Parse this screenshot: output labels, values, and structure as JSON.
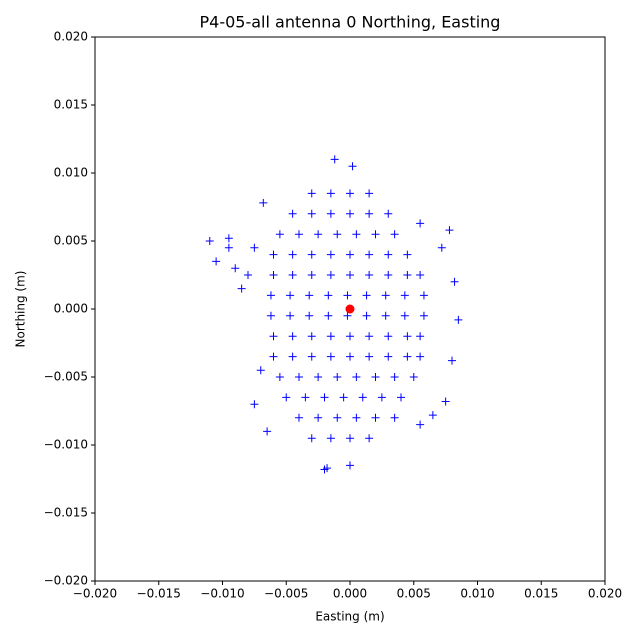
{
  "chart_data": {
    "type": "scatter",
    "title": "P4-05-all antenna 0 Northing, Easting",
    "x_label": "Easting (m)",
    "y_label": "Northing (m)",
    "xlim": [
      -0.02,
      0.02
    ],
    "ylim": [
      -0.02,
      0.02
    ],
    "xticks": [
      {
        "value": -0.02,
        "label": "−0.020"
      },
      {
        "value": -0.015,
        "label": "−0.015"
      },
      {
        "value": -0.01,
        "label": "−0.010"
      },
      {
        "value": -0.005,
        "label": "−0.005"
      },
      {
        "value": 0,
        "label": "0.000"
      },
      {
        "value": 0.005,
        "label": "0.005"
      },
      {
        "value": 0.01,
        "label": "0.010"
      },
      {
        "value": 0.015,
        "label": "0.015"
      },
      {
        "value": 0.02,
        "label": "0.020"
      }
    ],
    "yticks": [
      {
        "value": -0.02,
        "label": "−0.020"
      },
      {
        "value": -0.015,
        "label": "−0.015"
      },
      {
        "value": -0.01,
        "label": "−0.010"
      },
      {
        "value": -0.005,
        "label": "−0.005"
      },
      {
        "value": 0,
        "label": "0.000"
      },
      {
        "value": 0.005,
        "label": "0.005"
      },
      {
        "value": 0.01,
        "label": "0.010"
      },
      {
        "value": 0.015,
        "label": "0.015"
      },
      {
        "value": 0.02,
        "label": "0.020"
      }
    ],
    "series": [
      {
        "color": "#0000ff",
        "marker": "plus",
        "x": [
          -0.003,
          -0.0015,
          0,
          0.0015,
          -0.0045,
          -0.003,
          -0.0015,
          0,
          0.0015,
          0.003,
          -0.0055,
          -0.004,
          -0.0025,
          -0.001,
          0.0005,
          0.002,
          0.0035,
          -0.006,
          -0.0045,
          -0.003,
          -0.0015,
          0,
          0.0015,
          0.003,
          0.0045,
          -0.006,
          -0.0045,
          -0.003,
          -0.0015,
          0,
          0.0015,
          0.003,
          0.0045,
          0.0055,
          -0.0062,
          -0.0047,
          -0.0032,
          -0.0017,
          -0.0002,
          0.0013,
          0.0028,
          0.0043,
          0.0058,
          -0.0062,
          -0.0047,
          -0.0032,
          -0.0017,
          -0.0002,
          0.0013,
          0.0028,
          0.0043,
          0.0058,
          -0.006,
          -0.0045,
          -0.003,
          -0.0015,
          0,
          0.0015,
          0.003,
          0.0045,
          0.0055,
          -0.006,
          -0.0045,
          -0.003,
          -0.0015,
          0,
          0.0015,
          0.003,
          0.0045,
          0.0055,
          -0.0055,
          -0.004,
          -0.0025,
          -0.001,
          0.0005,
          0.002,
          0.0035,
          0.005,
          -0.005,
          -0.0035,
          -0.002,
          -0.0005,
          0.001,
          0.0025,
          0.004,
          -0.004,
          -0.0025,
          -0.001,
          0.0005,
          0.002,
          0.0035,
          -0.003,
          -0.0015,
          0,
          0.0015,
          -0.011,
          -0.0105,
          -0.0095,
          -0.009,
          -0.0085,
          -0.008,
          -0.0075,
          -0.0095,
          -0.007,
          -0.0075,
          -0.0065,
          -0.002,
          -0.0018,
          0,
          0.0055,
          0.0078,
          0.0085,
          0.0082,
          0.008,
          0.0075,
          0.0055,
          0.0065,
          -0.0012,
          0.0002,
          -0.0068,
          0.0072
        ],
        "y": [
          0.0085,
          0.0085,
          0.0085,
          0.0085,
          0.007,
          0.007,
          0.007,
          0.007,
          0.007,
          0.007,
          0.0055,
          0.0055,
          0.0055,
          0.0055,
          0.0055,
          0.0055,
          0.0055,
          0.004,
          0.004,
          0.004,
          0.004,
          0.004,
          0.004,
          0.004,
          0.004,
          0.0025,
          0.0025,
          0.0025,
          0.0025,
          0.0025,
          0.0025,
          0.0025,
          0.0025,
          0.0025,
          0.001,
          0.001,
          0.001,
          0.001,
          0.001,
          0.001,
          0.001,
          0.001,
          0.001,
          -0.0005,
          -0.0005,
          -0.0005,
          -0.0005,
          -0.0005,
          -0.0005,
          -0.0005,
          -0.0005,
          -0.0005,
          -0.002,
          -0.002,
          -0.002,
          -0.002,
          -0.002,
          -0.002,
          -0.002,
          -0.002,
          -0.002,
          -0.0035,
          -0.0035,
          -0.0035,
          -0.0035,
          -0.0035,
          -0.0035,
          -0.0035,
          -0.0035,
          -0.0035,
          -0.005,
          -0.005,
          -0.005,
          -0.005,
          -0.005,
          -0.005,
          -0.005,
          -0.005,
          -0.0065,
          -0.0065,
          -0.0065,
          -0.0065,
          -0.0065,
          -0.0065,
          -0.0065,
          -0.008,
          -0.008,
          -0.008,
          -0.008,
          -0.008,
          -0.008,
          -0.0095,
          -0.0095,
          -0.0095,
          -0.0095,
          0.005,
          0.0035,
          0.0045,
          0.003,
          0.0015,
          0.0025,
          0.0045,
          0.0052,
          -0.0045,
          -0.007,
          -0.009,
          -0.0118,
          -0.0117,
          -0.0115,
          0.0063,
          0.0058,
          -0.0008,
          0.002,
          -0.0038,
          -0.0068,
          -0.0085,
          -0.0078,
          0.011,
          0.0105,
          0.0078,
          0.0045
        ]
      },
      {
        "color": "#ff0000",
        "marker": "circle",
        "x": [
          0
        ],
        "y": [
          0
        ]
      }
    ]
  }
}
